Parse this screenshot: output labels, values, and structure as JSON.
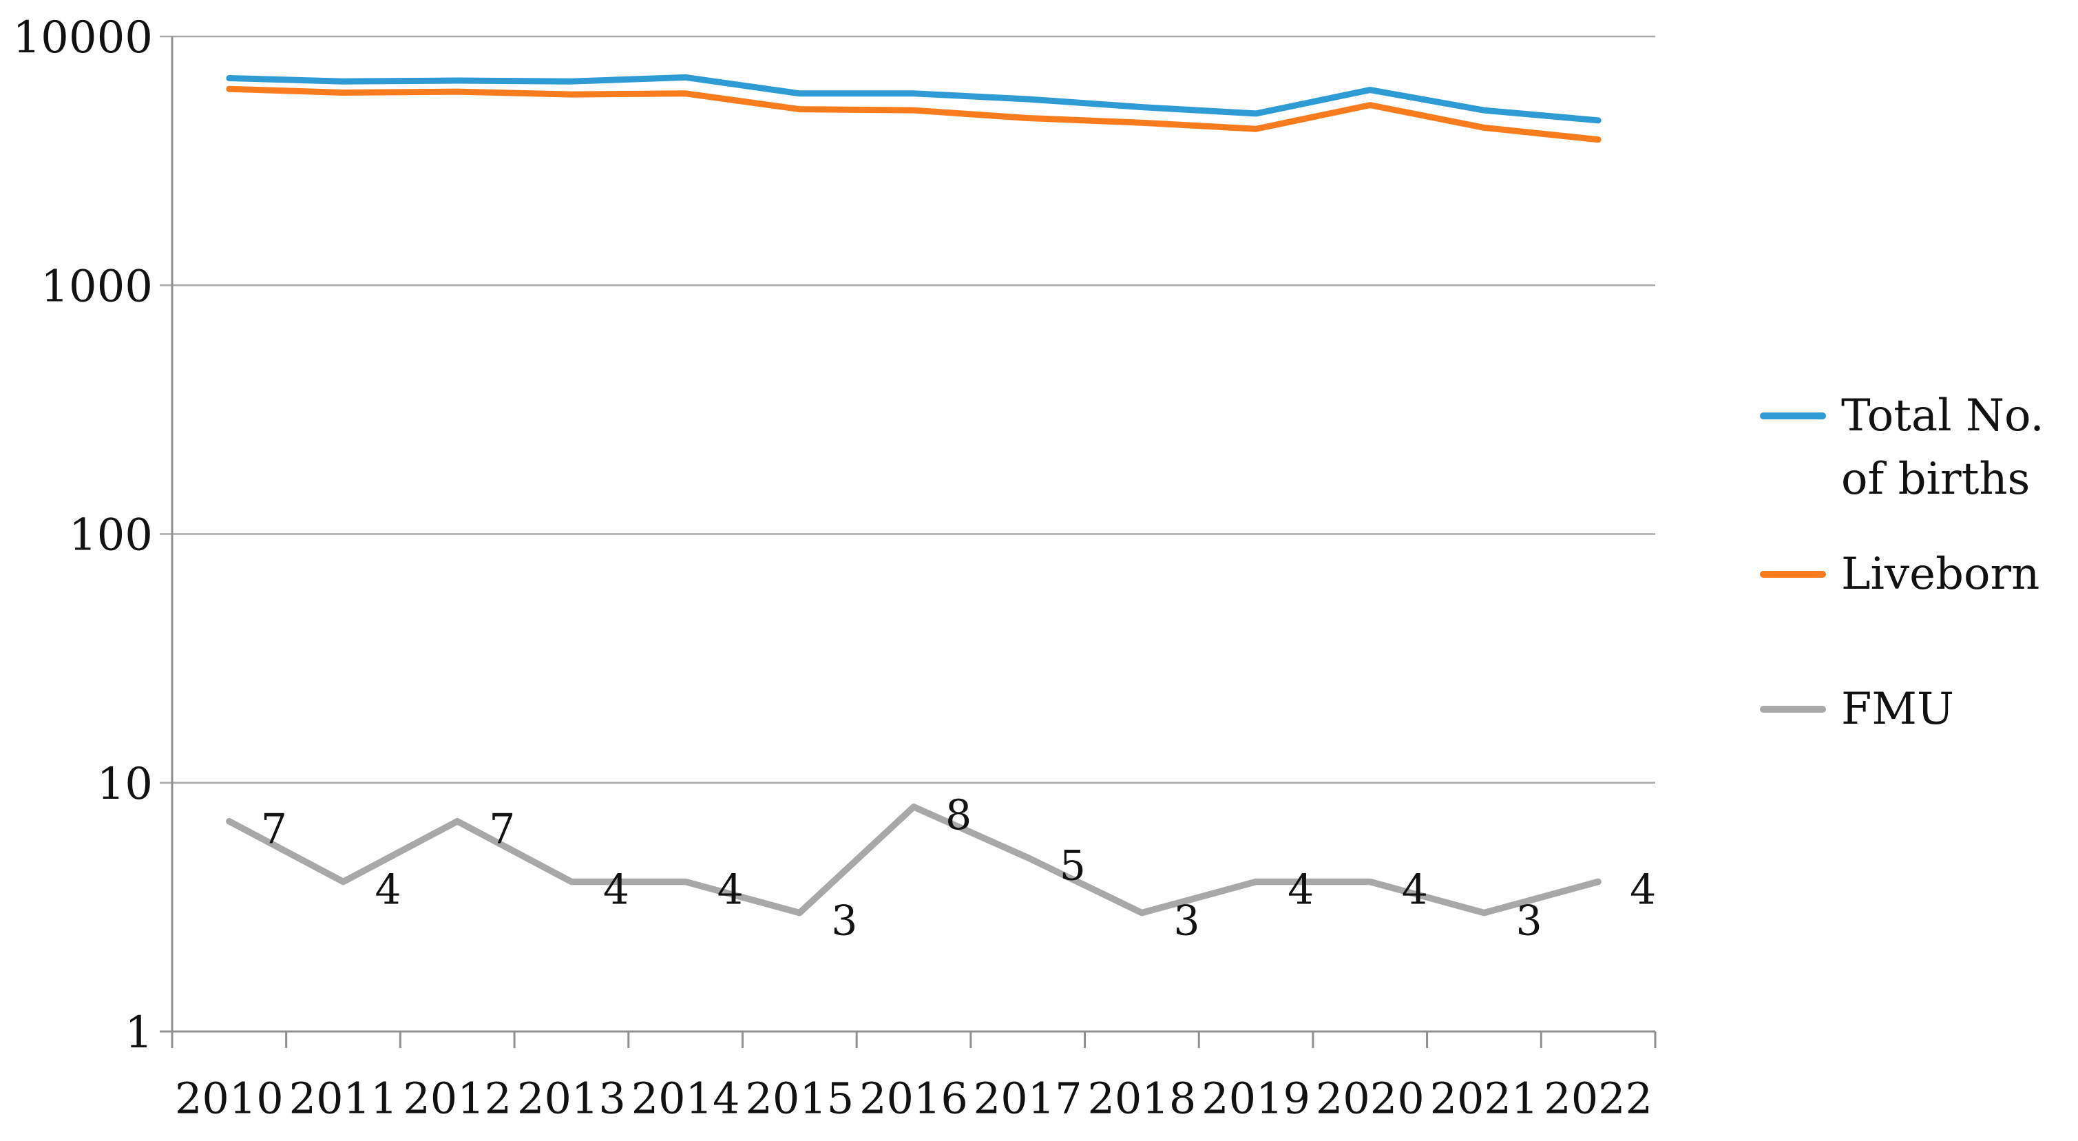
{
  "chart_data": {
    "type": "line",
    "title": "",
    "x_categories": [
      "2010",
      "2011",
      "2012",
      "2013",
      "2014",
      "2015",
      "2016",
      "2017",
      "2018",
      "2019",
      "2020",
      "2021",
      "2022"
    ],
    "y_axis": {
      "scale": "log10",
      "tick_values": [
        10000,
        1000,
        100,
        10,
        1
      ],
      "tick_labels": [
        "10000",
        "1000",
        "100",
        "10",
        "1"
      ]
    },
    "ylim": [
      1,
      10000
    ],
    "grid": "horizontal-decades",
    "legend_position": "right",
    "series": [
      {
        "name": "Total No. of births",
        "color": "#2E9BD5",
        "stroke_width": 9,
        "data_labels": false,
        "values": [
          6800,
          6600,
          6650,
          6600,
          6850,
          5900,
          5900,
          5600,
          5200,
          4900,
          6100,
          5050,
          4600
        ]
      },
      {
        "name": "Liveborn",
        "color": "#F87C1E",
        "stroke_width": 9,
        "data_labels": false,
        "values": [
          6150,
          5950,
          6000,
          5850,
          5900,
          5100,
          5050,
          4700,
          4500,
          4250,
          5300,
          4300,
          3850
        ]
      },
      {
        "name": "FMU",
        "color": "#A8A8A8",
        "stroke_width": 9.5,
        "data_labels": true,
        "values": [
          7,
          4,
          7,
          4,
          4,
          3,
          8,
          5,
          3,
          4,
          4,
          3,
          4
        ]
      }
    ]
  },
  "styles": {
    "axis_color": "#8F8F8F",
    "grid_color": "#A9A9A9",
    "text_color": "#111111",
    "background": "#FFFFFF"
  }
}
